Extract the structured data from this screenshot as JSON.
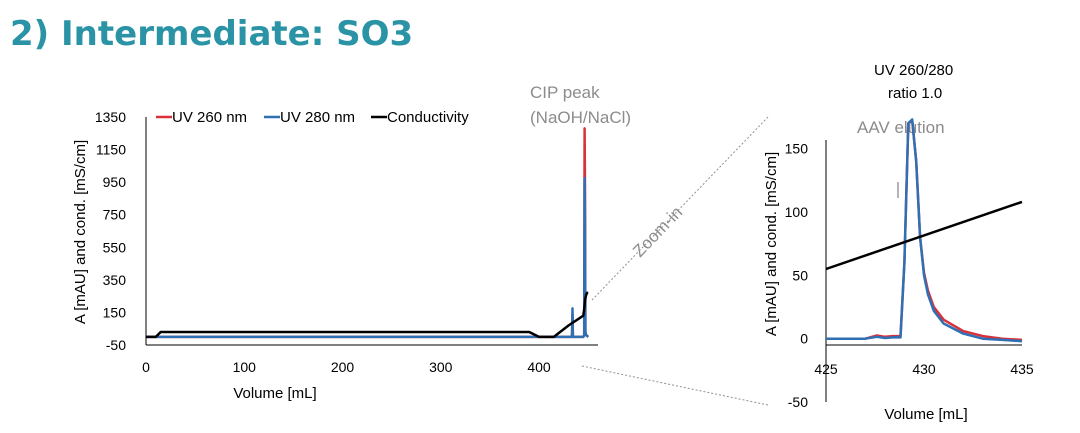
{
  "slide": {
    "title": "2) Intermediate: SO3"
  },
  "colors": {
    "uv260": "#d9313a",
    "uv280": "#2f6fb3",
    "conductivity": "#000000",
    "title": "#2a93a5",
    "annotation": "#8c8c8c"
  },
  "annotations": {
    "cip_line1": "CIP peak",
    "cip_line2": "(NaOH/NaCl)",
    "zoom": "Zoom-in",
    "ratio_line1": "UV 260/280",
    "ratio_line2": "ratio 1.0",
    "aav": "AAV elution"
  },
  "chart_data": [
    {
      "type": "line",
      "title": "",
      "xlabel": "Volume [mL]",
      "ylabel": "A [mAU] and cond. [mS/cm]",
      "xlim": [
        0,
        460
      ],
      "ylim": [
        -50,
        1350
      ],
      "xticks": [
        0,
        100,
        200,
        300,
        400
      ],
      "xtick_labels": [
        "0",
        "100",
        "200",
        "300",
        "400"
      ],
      "yticks": [
        -50,
        150,
        350,
        550,
        750,
        950,
        1150,
        1350
      ],
      "ytick_labels": [
        "-50",
        "150",
        "350",
        "550",
        "750",
        "950",
        "1150",
        "1350"
      ],
      "grid": false,
      "legend": "top",
      "series": [
        {
          "name": "UV 260 nm",
          "color": "#d9313a",
          "x": [
            0,
            430,
            433.5,
            434,
            434.5,
            436,
            445,
            446,
            446.4,
            446.8,
            447.2,
            448,
            449,
            450
          ],
          "y": [
            0,
            0,
            0,
            140,
            0,
            0,
            0,
            10,
            1280,
            900,
            30,
            10,
            5,
            0
          ]
        },
        {
          "name": "UV 280 nm",
          "color": "#2f6fb3",
          "x": [
            0,
            430,
            433.5,
            434,
            434.5,
            436,
            445,
            446,
            446.4,
            446.8,
            447.2,
            448,
            449,
            450
          ],
          "y": [
            0,
            0,
            0,
            175,
            0,
            0,
            0,
            10,
            975,
            700,
            30,
            10,
            5,
            0
          ]
        },
        {
          "name": "Conductivity",
          "color": "#000000",
          "x": [
            0,
            10,
            15,
            390,
            400,
            415,
            430,
            445,
            446,
            447,
            448,
            449,
            450
          ],
          "y": [
            0,
            0,
            30,
            30,
            0,
            0,
            70,
            130,
            170,
            230,
            260,
            270,
            270
          ]
        }
      ]
    },
    {
      "type": "line",
      "title": "",
      "xlabel": "Volume [mL]",
      "ylabel": "A [mAU] and cond. [mS/cm]",
      "xlim": [
        425,
        435
      ],
      "ylim": [
        -50,
        175
      ],
      "xticks": [
        425,
        430,
        435
      ],
      "xtick_labels": [
        "425",
        "430",
        "435"
      ],
      "yticks": [
        -50,
        0,
        50,
        100,
        150
      ],
      "ytick_labels": [
        "-50",
        "0",
        "50",
        "100",
        "150"
      ],
      "grid": false,
      "series": [
        {
          "name": "UV 260 nm",
          "color": "#d9313a",
          "x": [
            425,
            427,
            427.6,
            428,
            428.4,
            428.8,
            429.0,
            429.2,
            429.4,
            429.6,
            429.8,
            430.0,
            430.2,
            430.5,
            431,
            432,
            433,
            434,
            435
          ],
          "y": [
            0,
            0,
            2.5,
            1.5,
            2,
            2,
            60,
            170,
            172,
            140,
            80,
            52,
            38,
            25,
            15,
            6,
            2,
            0,
            -1
          ]
        },
        {
          "name": "UV 280 nm",
          "color": "#2f6fb3",
          "x": [
            425,
            427,
            427.6,
            428,
            428.4,
            428.8,
            429.0,
            429.2,
            429.4,
            429.6,
            429.8,
            430.0,
            430.2,
            430.5,
            431,
            432,
            433,
            434,
            435
          ],
          "y": [
            0,
            0,
            1.5,
            0.5,
            1,
            1,
            60,
            170,
            173,
            140,
            80,
            50,
            35,
            22,
            12,
            4,
            0,
            -1,
            -2
          ]
        },
        {
          "name": "Conductivity",
          "color": "#000000",
          "x": [
            425,
            435
          ],
          "y": [
            55,
            108
          ]
        }
      ]
    }
  ]
}
